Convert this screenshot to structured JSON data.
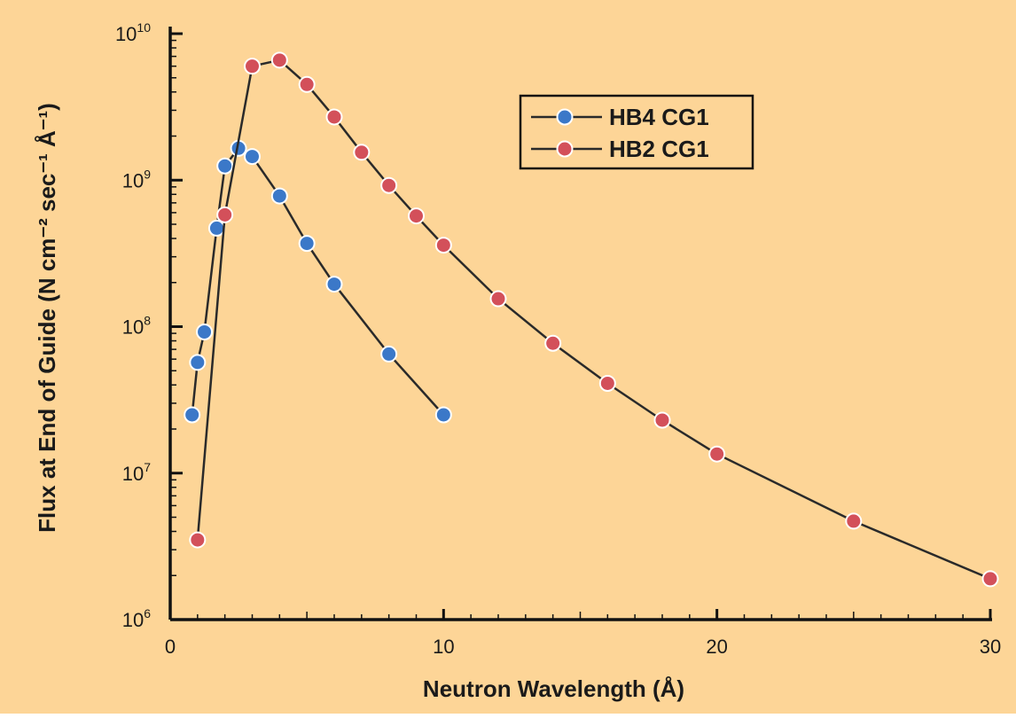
{
  "chart_data": {
    "type": "line",
    "title": "",
    "xlabel": "Neutron Wavelength (Å)",
    "ylabel": "Flux at End of Guide (N cm⁻² sec⁻¹ Å⁻¹)",
    "xlim": [
      0,
      30
    ],
    "ylim": [
      1000000,
      10000000000
    ],
    "yscale": "log",
    "x_ticks": [
      "0",
      "10",
      "20",
      "30"
    ],
    "y_ticks": [
      {
        "base": "10",
        "exp": "6"
      },
      {
        "base": "10",
        "exp": "7"
      },
      {
        "base": "10",
        "exp": "8"
      },
      {
        "base": "10",
        "exp": "9"
      },
      {
        "base": "10",
        "exp": "10"
      }
    ],
    "grid": false,
    "legend_position": "top-right",
    "background_color": "#fdd597",
    "series": [
      {
        "name": "HB4 CG1",
        "color": "#3b78c8",
        "points": [
          [
            0.8,
            25000000
          ],
          [
            1.0,
            57000000
          ],
          [
            1.25,
            92000000
          ],
          [
            1.7,
            470000000
          ],
          [
            2.0,
            1250000000
          ],
          [
            2.5,
            1650000000
          ],
          [
            3.0,
            1450000000
          ],
          [
            4.0,
            780000000
          ],
          [
            5.0,
            370000000
          ],
          [
            6.0,
            195000000
          ],
          [
            8.0,
            65000000
          ],
          [
            10.0,
            25000000
          ]
        ]
      },
      {
        "name": "HB2 CG1",
        "color": "#d3505a",
        "points": [
          [
            1.0,
            3500000
          ],
          [
            2.0,
            580000000
          ],
          [
            3.0,
            6000000000
          ],
          [
            4.0,
            6600000000
          ],
          [
            5.0,
            4500000000
          ],
          [
            6.0,
            2700000000
          ],
          [
            7.0,
            1550000000
          ],
          [
            8.0,
            920000000
          ],
          [
            9.0,
            570000000
          ],
          [
            10.0,
            360000000
          ],
          [
            12.0,
            155000000
          ],
          [
            14.0,
            77000000
          ],
          [
            16.0,
            41000000
          ],
          [
            18.0,
            23000000
          ],
          [
            20.0,
            13500000
          ],
          [
            25.0,
            4700000
          ],
          [
            30.0,
            1900000
          ]
        ]
      }
    ]
  }
}
